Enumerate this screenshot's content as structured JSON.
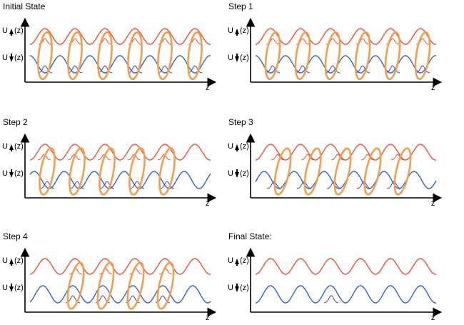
{
  "colors": {
    "up_wave": "#e8523a",
    "down_wave": "#2f62d6",
    "wavefunction_up": "#e8523a",
    "wavefunction_down": "#4a3fd0",
    "pair_ring": "#f0a04b",
    "axis": "#000000"
  },
  "labels": {
    "u_up": "U",
    "u_down": "U",
    "z_arg": "(z)",
    "z_axis": "z"
  },
  "panels": [
    {
      "title": "Initial State"
    },
    {
      "title": "Step 1"
    },
    {
      "title": "Step 2"
    },
    {
      "title": "Step 3"
    },
    {
      "title": "Step 4"
    },
    {
      "title": "Final State:"
    }
  ]
}
